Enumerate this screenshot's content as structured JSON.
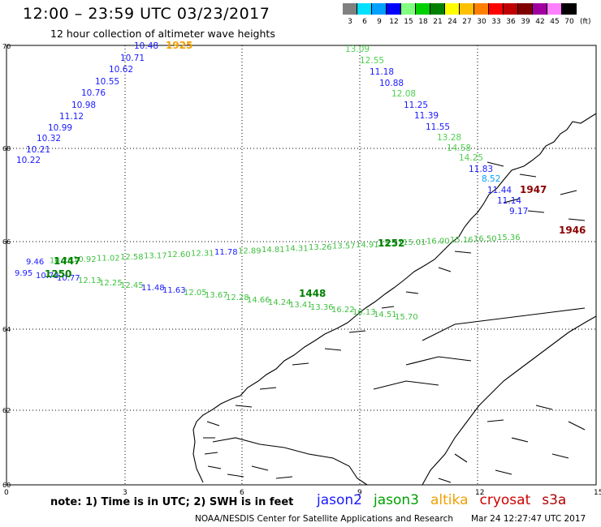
{
  "header": {
    "title": "12:00 – 23:59 UTC 03/23/2017",
    "subtitle": "12 hour collection of altimeter wave heights"
  },
  "color_scale": {
    "labels": [
      "3",
      "6",
      "9",
      "12",
      "15",
      "18",
      "21",
      "24",
      "27",
      "30",
      "33",
      "36",
      "39",
      "42",
      "45",
      "70"
    ],
    "unit": "(ft)",
    "colors": [
      "#808080",
      "#00e0ff",
      "#00a0ff",
      "#0000ff",
      "#80ff80",
      "#00d000",
      "#008000",
      "#ffff00",
      "#ffc000",
      "#ff8000",
      "#ff0000",
      "#c00000",
      "#800000",
      "#a000a0",
      "#ff80ff",
      "#000000"
    ]
  },
  "axes": {
    "x_ticks": [
      "0",
      "3",
      "6",
      "9",
      "12",
      "15"
    ],
    "y_ticks": [
      "70",
      "68",
      "66",
      "64",
      "62",
      "60"
    ]
  },
  "passes": [
    {
      "sat": "jason2",
      "color": "#1a1aff",
      "time": "1925",
      "time_color": "#f0a000",
      "values": [
        "10.48",
        "10.71",
        "10.62",
        "10.55",
        "10.76",
        "10.98",
        "11.12",
        "10.99",
        "10.32",
        "10.21",
        "10.22"
      ]
    },
    {
      "sat": "jason3",
      "color": "#30c030",
      "time": "1947",
      "time_color": "#8b0000",
      "values": [
        "13.09",
        "12.55",
        "11.18",
        "10.88",
        "12.08",
        "11.25",
        "11.39",
        "11.55",
        "13.28",
        "14.58",
        "14.25",
        "11.83",
        "8.52",
        "11.44",
        "11.14",
        "9.17"
      ]
    },
    {
      "sat": "jason3",
      "color": "#40c040",
      "time": "1252",
      "time_color": "#008000",
      "values": [
        "9.46",
        "10.75",
        "10.92",
        "11.02",
        "12.58",
        "13.17",
        "12.60",
        "12.31",
        "11.78",
        "12.89",
        "14.81",
        "14.31",
        "13.26",
        "13.57",
        "14.91",
        "15.27",
        "15.01",
        "16.00",
        "15.16",
        "16.50",
        "15.36"
      ]
    },
    {
      "sat": "jason3",
      "color": "#40c040",
      "time": "1448",
      "time_color": "#008000",
      "values": [
        "9.95",
        "10.73",
        "10.77",
        "12.13",
        "12.25",
        "12.45",
        "11.48",
        "11.63",
        "12.05",
        "13.67",
        "12.28",
        "14.66",
        "14.24",
        "13.41",
        "13.36",
        "16.22",
        "16.13",
        "14.51",
        "15.70"
      ]
    }
  ],
  "labels": {
    "t1250": "1250",
    "t1447": "1447",
    "t1946": "1946"
  },
  "footer": {
    "note": "note:  1) Time is in UTC;  2) SWH is in feet",
    "satellites": [
      {
        "name": "jason2",
        "color": "#1a1aff"
      },
      {
        "name": "jason3",
        "color": "#00a000"
      },
      {
        "name": "altika",
        "color": "#f0a000"
      },
      {
        "name": "cryosat",
        "color": "#d00000"
      },
      {
        "name": "s3a",
        "color": "#b00000"
      }
    ],
    "credit": "NOAA/NESDIS Center for Satellite Applications and Research",
    "timestamp": "Mar 24 12:27:47 UTC 2017"
  }
}
